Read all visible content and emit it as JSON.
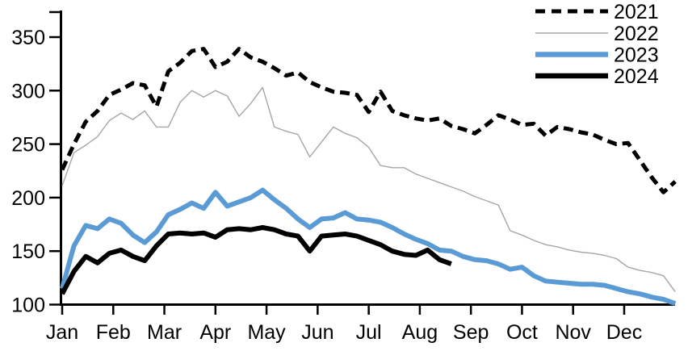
{
  "chart_data": {
    "type": "line",
    "title": "",
    "sampling": "weekly",
    "x_axis": {
      "tick_labels": [
        "Jan",
        "Feb",
        "Mar",
        "Apr",
        "May",
        "Jun",
        "Jul",
        "Aug",
        "Sep",
        "Oct",
        "Nov",
        "Dec"
      ],
      "unit": "month",
      "range_months": 12
    },
    "y_axis": {
      "ticks": [
        100,
        150,
        200,
        250,
        300,
        350
      ],
      "tick_labels": [
        "100",
        "150",
        "200",
        "250",
        "300",
        "350"
      ],
      "min": 100,
      "max": 350,
      "grid": false
    },
    "legend": {
      "position": "top-right",
      "entries": [
        "2021",
        "2022",
        "2023",
        "2024"
      ]
    },
    "colors": {
      "line_2021": "#000000",
      "line_2022": "#a6a6a6",
      "line_2023": "#5b9bd5",
      "line_2024": "#000000",
      "axis": "#000000",
      "background": "#ffffff"
    },
    "series": [
      {
        "name": "2021",
        "color": "#000000",
        "style": "dashed",
        "width": 5,
        "values": [
          226,
          250,
          271,
          281,
          296,
          301,
          307,
          305,
          285,
          318,
          326,
          337,
          339,
          322,
          327,
          339,
          331,
          327,
          321,
          314,
          317,
          308,
          303,
          299,
          298,
          296,
          280,
          299,
          281,
          277,
          274,
          272,
          274,
          267,
          264,
          260,
          268,
          277,
          273,
          268,
          269,
          258,
          266,
          264,
          261,
          259,
          254,
          250,
          251,
          235,
          219,
          205,
          215
        ]
      },
      {
        "name": "2022",
        "color": "#a6a6a6",
        "style": "solid",
        "width": 1.4,
        "values": [
          211,
          242,
          249,
          257,
          272,
          279,
          273,
          281,
          266,
          266,
          289,
          300,
          294,
          300,
          295,
          276,
          288,
          303,
          266,
          262,
          259,
          238,
          252,
          266,
          260,
          256,
          247,
          230,
          228,
          228,
          222,
          218,
          214,
          210,
          206,
          201,
          197,
          193,
          169,
          165,
          160,
          156,
          154,
          151,
          149,
          148,
          146,
          143,
          135,
          132,
          130,
          127,
          112
        ]
      },
      {
        "name": "2023",
        "color": "#5b9bd5",
        "style": "solid",
        "width": 6,
        "values": [
          115,
          155,
          174,
          171,
          180,
          176,
          165,
          158,
          168,
          184,
          189,
          195,
          190,
          205,
          192,
          196,
          200,
          207,
          198,
          190,
          180,
          172,
          180,
          181,
          186,
          180,
          179,
          177,
          172,
          166,
          161,
          157,
          151,
          150,
          145,
          142,
          141,
          138,
          133,
          135,
          127,
          122,
          121,
          120,
          119,
          119,
          118,
          115,
          112,
          110,
          107,
          105,
          101
        ]
      },
      {
        "name": "2024",
        "color": "#000000",
        "style": "solid",
        "width": 6,
        "values": [
          110,
          131,
          145,
          139,
          148,
          151,
          145,
          141,
          155,
          166,
          167,
          166,
          167,
          163,
          170,
          171,
          170,
          172,
          170,
          166,
          164,
          150,
          164,
          165,
          166,
          164,
          160,
          156,
          150,
          147,
          146,
          151,
          142,
          138
        ]
      }
    ]
  }
}
